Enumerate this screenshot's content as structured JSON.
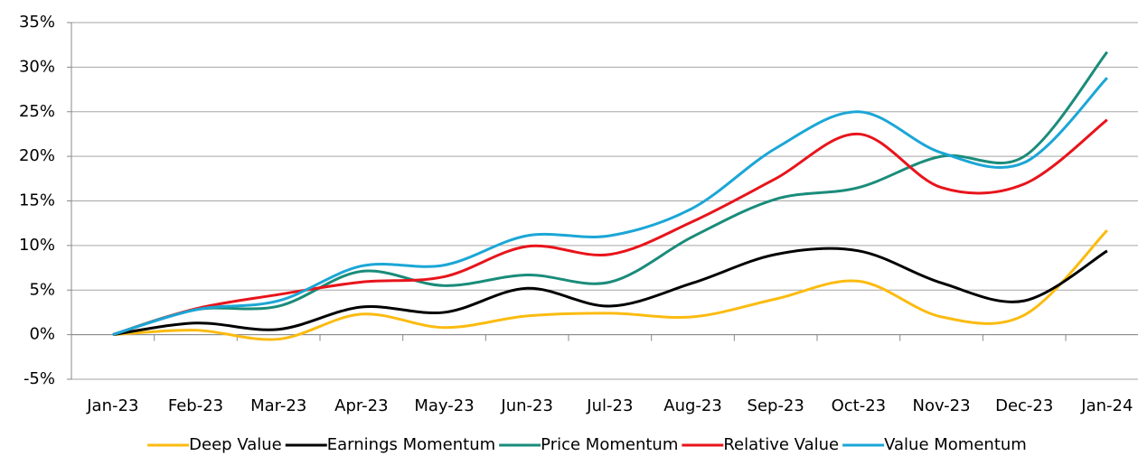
{
  "chart_data": {
    "type": "line",
    "categories": [
      "Jan-23",
      "Feb-23",
      "Mar-23",
      "Apr-23",
      "May-23",
      "Jun-23",
      "Jul-23",
      "Aug-23",
      "Sep-23",
      "Oct-23",
      "Nov-23",
      "Dec-23",
      "Jan-24"
    ],
    "series": [
      {
        "name": "Deep Value",
        "color": "#fbbb10",
        "values": [
          0,
          0.5,
          -0.5,
          2.3,
          0.8,
          2.1,
          2.4,
          2.0,
          4.0,
          6.0,
          2.0,
          2.2,
          11.7
        ]
      },
      {
        "name": "Earnings Momentum",
        "color": "#000000",
        "values": [
          0,
          1.3,
          0.6,
          3.1,
          2.5,
          5.2,
          3.2,
          5.8,
          9.0,
          9.4,
          5.8,
          3.8,
          9.4
        ]
      },
      {
        "name": "Price Momentum",
        "color": "#1a8c7a",
        "values": [
          0,
          2.8,
          3.2,
          7.1,
          5.5,
          6.7,
          5.9,
          11.0,
          15.2,
          16.5,
          20.0,
          20.0,
          31.7
        ]
      },
      {
        "name": "Relative Value",
        "color": "#e8141b",
        "values": [
          0,
          2.9,
          4.5,
          5.9,
          6.5,
          9.9,
          9.0,
          12.7,
          17.5,
          22.5,
          16.5,
          16.9,
          24.1
        ]
      },
      {
        "name": "Value Momentum",
        "color": "#1ba6d6",
        "values": [
          0,
          2.8,
          3.8,
          7.7,
          7.8,
          11.1,
          11.1,
          14.2,
          20.9,
          25.0,
          20.4,
          19.3,
          28.8
        ]
      }
    ],
    "ylim": [
      -5,
      35
    ],
    "yticks": [
      {
        "value": -5,
        "label": "-5%"
      },
      {
        "value": 0,
        "label": "0%"
      },
      {
        "value": 5,
        "label": "5%"
      },
      {
        "value": 10,
        "label": "10%"
      },
      {
        "value": 15,
        "label": "15%"
      },
      {
        "value": 20,
        "label": "20%"
      },
      {
        "value": 25,
        "label": "25%"
      },
      {
        "value": 30,
        "label": "30%"
      },
      {
        "value": 35,
        "label": "35%"
      }
    ],
    "grid": true,
    "legend": "bottom"
  }
}
